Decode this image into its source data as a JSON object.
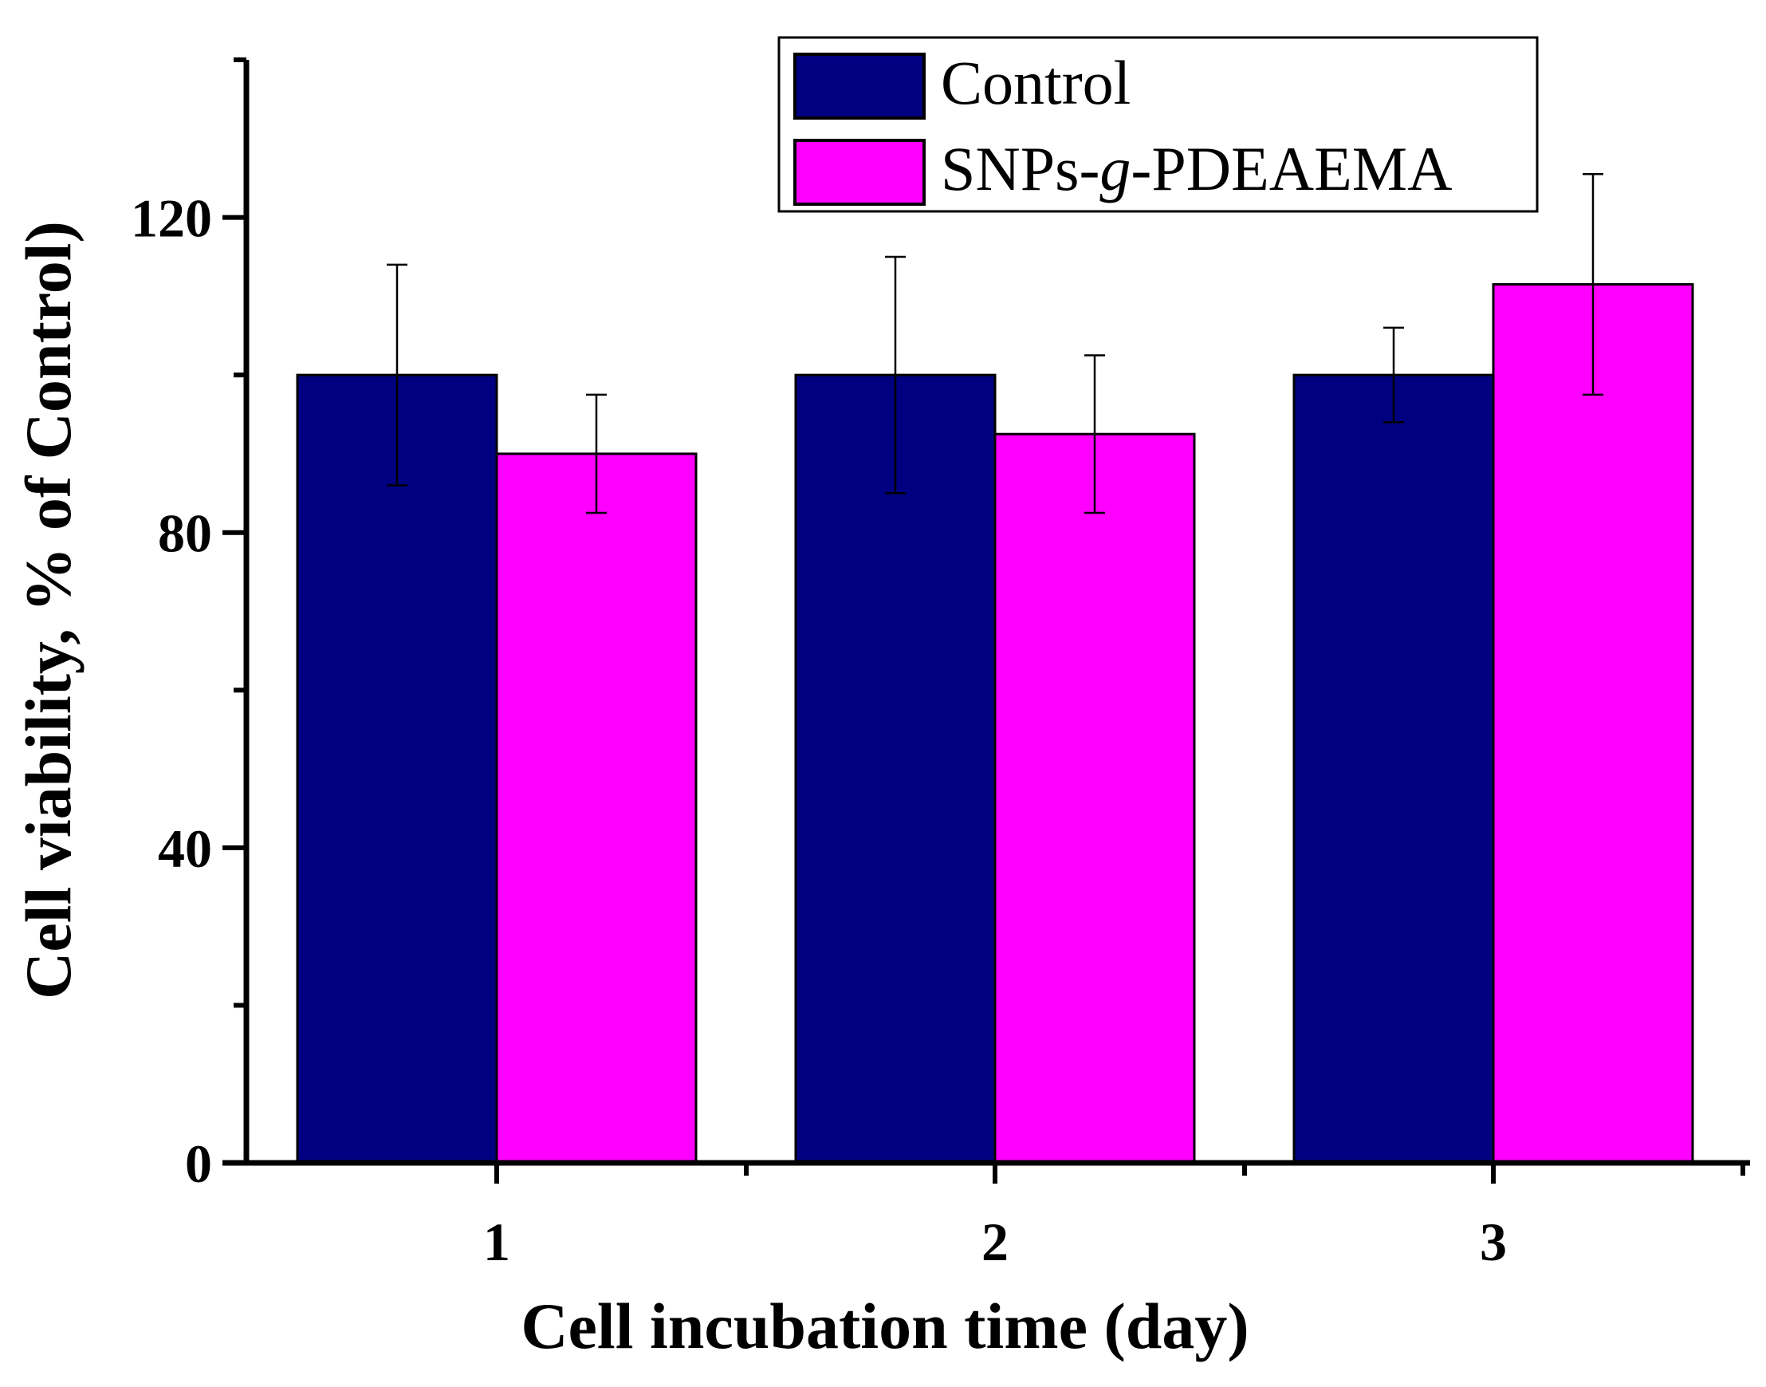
{
  "chart_data": {
    "type": "bar",
    "categories": [
      "1",
      "2",
      "3"
    ],
    "series": [
      {
        "name": "Control",
        "color": "#000080",
        "values": [
          100,
          100,
          100
        ],
        "errors": [
          14,
          15,
          6
        ]
      },
      {
        "name_parts": [
          "SNPs-",
          "g",
          "-PDEAEMA"
        ],
        "name": "SNPs-g-PDEAEMA",
        "color": "#ff00ff",
        "values": [
          90,
          92.5,
          111.5
        ],
        "errors": [
          7.5,
          10,
          14
        ]
      }
    ],
    "xlabel": "Cell incubation time (day)",
    "ylabel": "Cell viability, % of Control)",
    "ylim": [
      0,
      140
    ],
    "yticks": [
      0,
      40,
      80,
      120
    ],
    "yticks_minor": [
      20,
      60,
      100,
      140
    ],
    "legend_position": "top-right",
    "grid": false
  }
}
